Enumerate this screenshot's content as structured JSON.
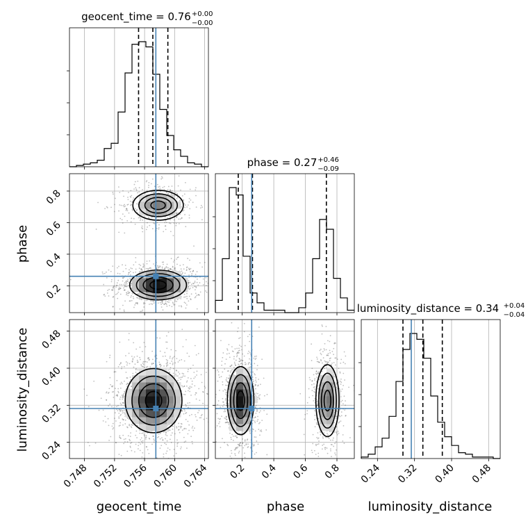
{
  "chart_data": {
    "type": "corner",
    "parameters": [
      "geocent_time",
      "phase",
      "luminosity_distance"
    ],
    "axis_labels": [
      "geocent_time",
      "phase",
      "luminosity_distance"
    ],
    "truths": [
      0.7575,
      0.26,
      0.313
    ],
    "truth_color": "#4682b4",
    "ranges": {
      "geocent_time": [
        0.746,
        0.7645
      ],
      "phase": [
        0.03,
        0.91
      ],
      "luminosity_distance": [
        0.205,
        0.505
      ]
    },
    "ticks": {
      "geocent_time": [
        0.748,
        0.752,
        0.756,
        0.76,
        0.764
      ],
      "phase": [
        0.2,
        0.4,
        0.6,
        0.8
      ],
      "luminosity_distance": [
        0.24,
        0.32,
        0.4,
        0.48
      ]
    },
    "tick_labels": {
      "geocent_time": [
        "0.748",
        "0.752",
        "0.756",
        "0.760",
        "0.764"
      ],
      "phase": [
        "0.2",
        "0.4",
        "0.6",
        "0.8"
      ],
      "luminosity_distance": [
        "0.24",
        "0.32",
        "0.40",
        "0.48"
      ]
    },
    "titles": [
      {
        "param": "geocent_time",
        "prefix": "geocent_time = 0.76",
        "upper": "+0.00",
        "lower": "−0.00"
      },
      {
        "param": "phase",
        "prefix": "phase = 0.27",
        "upper": "+0.46",
        "lower": "−0.09"
      },
      {
        "param": "luminosity_distance",
        "prefix": "luminosity_distance = 0.34",
        "upper": "+0.04",
        "lower": "−0.04"
      }
    ],
    "histograms": {
      "geocent_time": {
        "edges_start": 0.746,
        "bin_width": 0.000925,
        "counts": [
          0,
          1,
          2,
          3,
          5,
          14,
          18,
          42,
          72,
          94,
          96,
          92,
          71,
          44,
          24,
          13,
          8,
          3,
          2,
          0
        ],
        "quantiles": [
          0.7552,
          0.7571,
          0.7591
        ]
      },
      "phase": {
        "edges_start": 0.03,
        "bin_width": 0.044,
        "counts": [
          5,
          22,
          51,
          48,
          23,
          8,
          4,
          1,
          1,
          1,
          0,
          0,
          2,
          8,
          22,
          38,
          34,
          14,
          6,
          1
        ],
        "quantiles": [
          0.175,
          0.265,
          0.733
        ]
      },
      "luminosity_distance": {
        "edges_start": 0.205,
        "bin_width": 0.015,
        "counts": [
          1,
          3,
          8,
          14,
          29,
          53,
          75,
          86,
          82,
          69,
          43,
          25,
          15,
          9,
          4,
          3,
          1,
          1,
          1,
          0
        ],
        "quantiles": [
          0.295,
          0.338,
          0.38
        ]
      }
    },
    "modes_2d": {
      "phase_vs_geocent_time": [
        {
          "center": [
            0.7578,
            0.205
          ],
          "std": [
            0.0018,
            0.045
          ],
          "weight": 0.68
        },
        {
          "center": [
            0.7578,
            0.71
          ],
          "std": [
            0.0016,
            0.045
          ],
          "weight": 0.32
        }
      ],
      "luminosity_distance_vs_geocent_time": [
        {
          "center": [
            0.7572,
            0.33
          ],
          "std": [
            0.0018,
            0.033
          ],
          "weight": 1.0
        }
      ],
      "luminosity_distance_vs_phase": [
        {
          "center": [
            0.19,
            0.33
          ],
          "std": [
            0.04,
            0.035
          ],
          "weight": 0.62
        },
        {
          "center": [
            0.74,
            0.33
          ],
          "std": [
            0.035,
            0.037
          ],
          "weight": 0.38
        }
      ]
    }
  }
}
